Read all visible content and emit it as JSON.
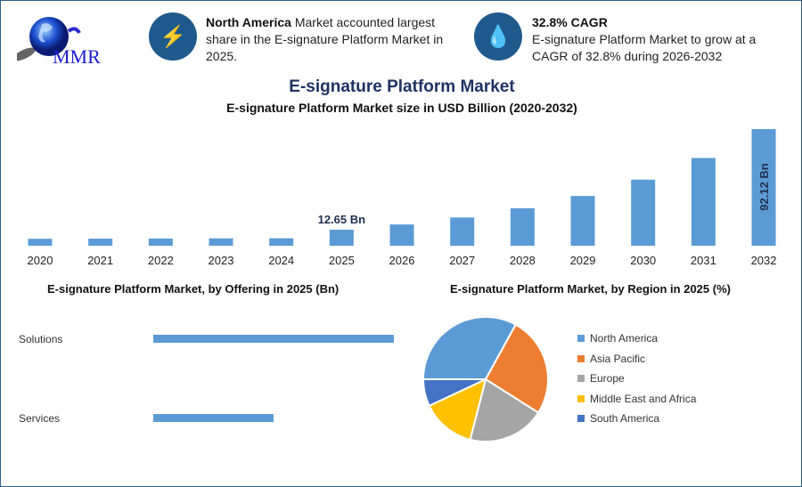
{
  "logo": {
    "text": "MMR"
  },
  "info_left": {
    "icon": "lightning-icon",
    "bold": "North America",
    "text": " Market accounted largest share in the E-signature Platform Market in 2025."
  },
  "info_right": {
    "icon": "growth-drop-icon",
    "title": "32.8% CAGR",
    "text": "E-signature Platform Market to grow at a CAGR of 32.8% during 2026-2032"
  },
  "header": {
    "title": "E-signature Platform Market",
    "subtitle": "E-signature Platform Market size in USD Billion (2020-2032)"
  },
  "colors": {
    "bar": "#5b9bd5",
    "navy": "#1f5a8c"
  },
  "chart_data": [
    {
      "type": "bar",
      "title": "E-signature Platform Market size in USD Billion (2020-2032)",
      "categories": [
        "2020",
        "2021",
        "2022",
        "2023",
        "2024",
        "2025",
        "2026",
        "2027",
        "2028",
        "2029",
        "2030",
        "2031",
        "2032"
      ],
      "values": [
        5.5,
        5.6,
        5.7,
        5.8,
        5.9,
        12.65,
        16.8,
        22.3,
        29.6,
        39.3,
        52.2,
        69.3,
        92.12
      ],
      "data_labels": {
        "2025": "12.65 Bn",
        "2032": "92.12 Bn"
      },
      "xlabel": "",
      "ylabel": "USD Billion",
      "ylim": [
        0,
        92.12
      ]
    },
    {
      "type": "bar",
      "orientation": "horizontal",
      "title": "E-signature Platform Market, by Offering in 2025 (Bn)",
      "categories": [
        "Solutions",
        "Services"
      ],
      "values": [
        8.43,
        4.22
      ],
      "xlim": [
        0,
        8.43
      ]
    },
    {
      "type": "pie",
      "title": "E-signature Platform Market, by Region in 2025 (%)",
      "categories": [
        "North America",
        "Asia Pacific",
        "Europe",
        "Middle East and Africa",
        "South America"
      ],
      "values": [
        33,
        26,
        20,
        14,
        7
      ],
      "colors": [
        "#5b9bd5",
        "#ed7d31",
        "#a5a5a5",
        "#ffc000",
        "#4472c4"
      ],
      "legend": "right"
    }
  ]
}
